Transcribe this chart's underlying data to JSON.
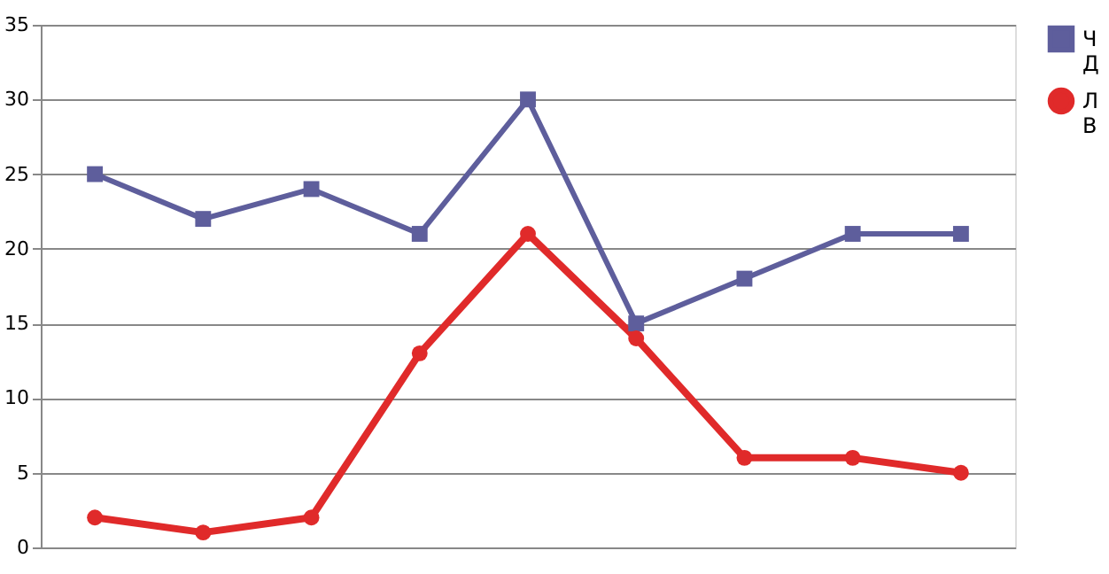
{
  "chart_data": {
    "type": "line",
    "categories": [
      null,
      null,
      null,
      null,
      null,
      null,
      null,
      null,
      null
    ],
    "series": [
      {
        "name": "ЧД",
        "color": "#5e5e9c",
        "marker": "square",
        "values": [
          25,
          22,
          24,
          21,
          30,
          15,
          18,
          21,
          21
        ]
      },
      {
        "name": "ЛВ",
        "color": "#e02a2a",
        "marker": "circle",
        "values": [
          2,
          1,
          2,
          13,
          21,
          14,
          6,
          6,
          5
        ]
      }
    ],
    "ylim": [
      0,
      35
    ],
    "yticks": [
      0,
      5,
      10,
      15,
      20,
      25,
      30,
      35
    ],
    "grid": "y",
    "legend": "right"
  }
}
